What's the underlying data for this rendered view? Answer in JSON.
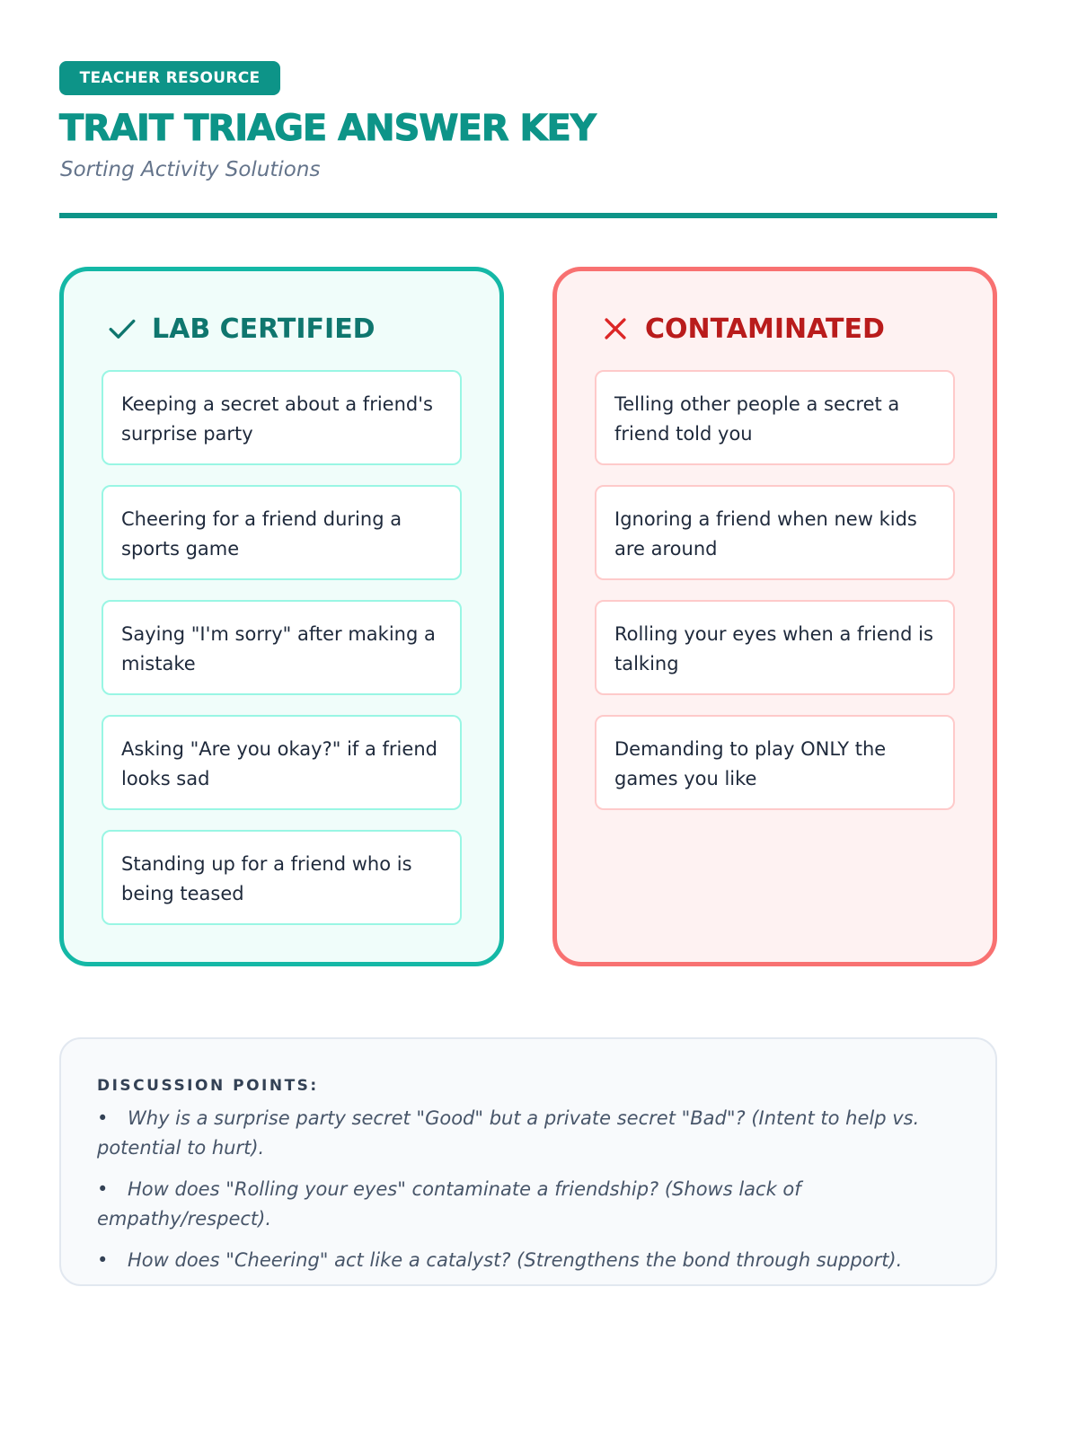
{
  "header": {
    "badge": "TEACHER RESOURCE",
    "title": "TRAIT TRIAGE ANSWER KEY",
    "subtitle": "Sorting Activity Solutions"
  },
  "colors": {
    "accent": "#0d9488",
    "good_border": "#14b8a6",
    "bad_border": "#f87171",
    "good_text": "#0f766e",
    "bad_text": "#b91c1c"
  },
  "columns": [
    {
      "title": "LAB CERTIFIED",
      "icon": "check-icon",
      "items": [
        "Keeping a secret about a friend's surprise party",
        "Cheering for a friend during a sports game",
        "Saying \"I'm sorry\" after making a mistake",
        "Asking \"Are you okay?\" if a friend looks sad",
        "Standing up for a friend who is being teased"
      ]
    },
    {
      "title": "CONTAMINATED",
      "icon": "x-icon",
      "items": [
        "Telling other people a secret a friend told you",
        "Ignoring a friend when new kids are around",
        "Rolling your eyes when a friend is talking",
        "Demanding to play ONLY the games you like"
      ]
    }
  ],
  "discussion": {
    "heading": "DISCUSSION POINTS:",
    "bullet": "•",
    "points": [
      "Why is a surprise party secret \"Good\" but a private secret \"Bad\"? (Intent to help vs. potential to hurt).",
      "How does \"Rolling your eyes\" contaminate a friendship? (Shows lack of empathy/respect).",
      "How does \"Cheering\" act like a catalyst? (Strengthens the bond through support)."
    ]
  }
}
